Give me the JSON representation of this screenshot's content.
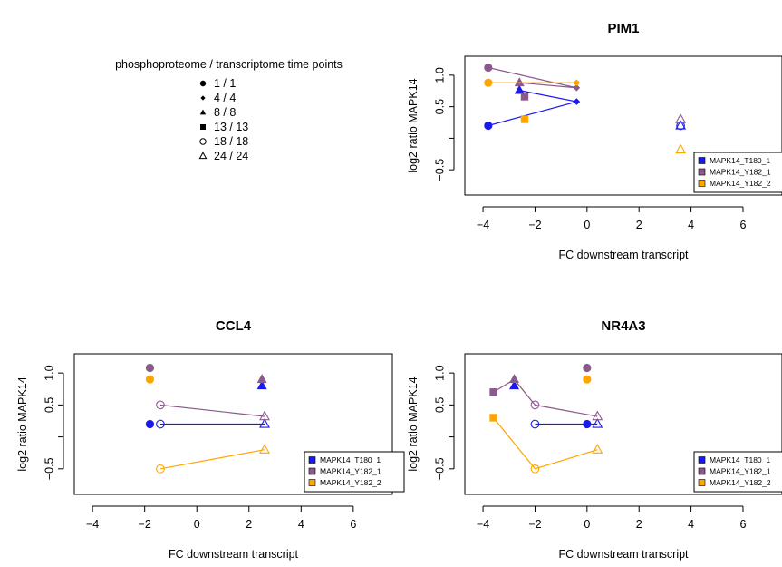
{
  "legend": {
    "title": "phosphoproteome / transcriptome time points",
    "items": [
      {
        "shape": "circle-filled",
        "label": "1 / 1"
      },
      {
        "shape": "diamond-filled",
        "label": "4 / 4"
      },
      {
        "shape": "triangle-filled",
        "label": "8 / 8"
      },
      {
        "shape": "square-filled",
        "label": "13 / 13"
      },
      {
        "shape": "circle-open",
        "label": "18 / 18"
      },
      {
        "shape": "triangle-open",
        "label": "24 / 24"
      }
    ]
  },
  "series_colors": {
    "MAPK14_T180_1": "#1a1aee",
    "MAPK14_Y182_1": "#8b5a8c",
    "MAPK14_Y182_2": "#ffa500"
  },
  "chart_data": [
    {
      "type": "scatter",
      "title": "PIM1",
      "xlabel": "FC downstream transcript",
      "ylabel": "log2 ratio MAPK14",
      "xlim": [
        -4.7,
        7.5
      ],
      "ylim": [
        -0.9,
        1.3
      ],
      "xticks": [
        -4,
        -2,
        0,
        2,
        4,
        6
      ],
      "yticks": [
        -0.5,
        0,
        0.5,
        1.0
      ],
      "ytick_labels": [
        "-0.5",
        "",
        "0.5",
        "1.0"
      ],
      "legend_position": "bottom-right",
      "series": [
        {
          "name": "MAPK14_T180_1",
          "connected_timepoints": [
            "1 / 1",
            "4 / 4",
            "8 / 8"
          ],
          "points": [
            {
              "tp": "1 / 1",
              "x": -3.8,
              "y": 0.2
            },
            {
              "tp": "4 / 4",
              "x": -0.4,
              "y": 0.58
            },
            {
              "tp": "8 / 8",
              "x": -2.6,
              "y": 0.76
            },
            {
              "tp": "18 / 18",
              "x": 3.6,
              "y": 0.2
            },
            {
              "tp": "24 / 24",
              "x": 3.6,
              "y": 0.2
            }
          ]
        },
        {
          "name": "MAPK14_Y182_1",
          "connected_timepoints": [
            "1 / 1",
            "4 / 4",
            "8 / 8"
          ],
          "points": [
            {
              "tp": "1 / 1",
              "x": -3.8,
              "y": 1.12
            },
            {
              "tp": "4 / 4",
              "x": -0.4,
              "y": 0.8
            },
            {
              "tp": "8 / 8",
              "x": -2.6,
              "y": 0.88
            },
            {
              "tp": "13 / 13",
              "x": -2.4,
              "y": 0.66
            },
            {
              "tp": "24 / 24",
              "x": 3.6,
              "y": 0.3
            }
          ]
        },
        {
          "name": "MAPK14_Y182_2",
          "connected_timepoints": [
            "1 / 1",
            "4 / 4"
          ],
          "points": [
            {
              "tp": "1 / 1",
              "x": -3.8,
              "y": 0.88
            },
            {
              "tp": "4 / 4",
              "x": -0.4,
              "y": 0.88
            },
            {
              "tp": "13 / 13",
              "x": -2.4,
              "y": 0.3
            },
            {
              "tp": "24 / 24",
              "x": 3.6,
              "y": -0.18
            }
          ]
        }
      ]
    },
    {
      "type": "scatter",
      "title": "CCL4",
      "xlabel": "FC downstream transcript",
      "ylabel": "log2 ratio MAPK14",
      "xlim": [
        -4.7,
        7.5
      ],
      "ylim": [
        -0.9,
        1.3
      ],
      "xticks": [
        -4,
        -2,
        0,
        2,
        4,
        6
      ],
      "yticks": [
        -0.5,
        0,
        0.5,
        1.0
      ],
      "ytick_labels": [
        "-0.5",
        "",
        "0.5",
        "1.0"
      ],
      "legend_position": "bottom-right",
      "series": [
        {
          "name": "MAPK14_T180_1",
          "connected_timepoints": [
            "18 / 18",
            "24 / 24"
          ],
          "points": [
            {
              "tp": "1 / 1",
              "x": -1.8,
              "y": 0.2
            },
            {
              "tp": "8 / 8",
              "x": 2.5,
              "y": 0.8
            },
            {
              "tp": "18 / 18",
              "x": -1.4,
              "y": 0.2
            },
            {
              "tp": "24 / 24",
              "x": 2.6,
              "y": 0.2
            }
          ]
        },
        {
          "name": "MAPK14_Y182_1",
          "connected_timepoints": [
            "18 / 18",
            "24 / 24"
          ],
          "points": [
            {
              "tp": "1 / 1",
              "x": -1.8,
              "y": 1.08
            },
            {
              "tp": "8 / 8",
              "x": 2.5,
              "y": 0.9
            },
            {
              "tp": "18 / 18",
              "x": -1.4,
              "y": 0.5
            },
            {
              "tp": "24 / 24",
              "x": 2.6,
              "y": 0.32
            }
          ]
        },
        {
          "name": "MAPK14_Y182_2",
          "connected_timepoints": [
            "18 / 18",
            "24 / 24"
          ],
          "points": [
            {
              "tp": "1 / 1",
              "x": -1.8,
              "y": 0.9
            },
            {
              "tp": "18 / 18",
              "x": -1.4,
              "y": -0.5
            },
            {
              "tp": "24 / 24",
              "x": 2.6,
              "y": -0.2
            }
          ]
        }
      ]
    },
    {
      "type": "scatter",
      "title": "NR4A3",
      "xlabel": "FC downstream transcript",
      "ylabel": "log2 ratio MAPK14",
      "xlim": [
        -4.7,
        7.5
      ],
      "ylim": [
        -0.9,
        1.3
      ],
      "xticks": [
        -4,
        -2,
        0,
        2,
        4,
        6
      ],
      "yticks": [
        -0.5,
        0,
        0.5,
        1.0
      ],
      "ytick_labels": [
        "-0.5",
        "",
        "0.5",
        "1.0"
      ],
      "legend_position": "bottom-right",
      "series": [
        {
          "name": "MAPK14_T180_1",
          "connected_timepoints": [
            "18 / 18",
            "24 / 24"
          ],
          "points": [
            {
              "tp": "1 / 1",
              "x": 0.0,
              "y": 0.2
            },
            {
              "tp": "8 / 8",
              "x": -2.8,
              "y": 0.8
            },
            {
              "tp": "18 / 18",
              "x": -2.0,
              "y": 0.2
            },
            {
              "tp": "24 / 24",
              "x": 0.4,
              "y": 0.2
            }
          ]
        },
        {
          "name": "MAPK14_Y182_1",
          "connected_timepoints": [
            "13 / 13",
            "8 / 8",
            "18 / 18",
            "24 / 24"
          ],
          "points": [
            {
              "tp": "1 / 1",
              "x": 0.0,
              "y": 1.08
            },
            {
              "tp": "8 / 8",
              "x": -2.8,
              "y": 0.9
            },
            {
              "tp": "13 / 13",
              "x": -3.6,
              "y": 0.7
            },
            {
              "tp": "18 / 18",
              "x": -2.0,
              "y": 0.5
            },
            {
              "tp": "24 / 24",
              "x": 0.4,
              "y": 0.32
            }
          ]
        },
        {
          "name": "MAPK14_Y182_2",
          "connected_timepoints": [
            "13 / 13",
            "18 / 18",
            "24 / 24"
          ],
          "points": [
            {
              "tp": "1 / 1",
              "x": 0.0,
              "y": 0.9
            },
            {
              "tp": "13 / 13",
              "x": -3.6,
              "y": 0.3
            },
            {
              "tp": "18 / 18",
              "x": -2.0,
              "y": -0.5
            },
            {
              "tp": "24 / 24",
              "x": 0.4,
              "y": -0.2
            }
          ]
        }
      ]
    }
  ]
}
